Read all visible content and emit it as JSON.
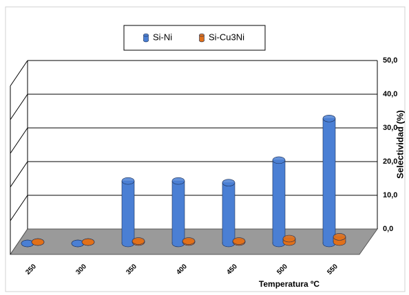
{
  "chart_data": {
    "type": "bar3d",
    "categories": [
      "250",
      "300",
      "350",
      "400",
      "450",
      "500",
      "550"
    ],
    "series": [
      {
        "name": "Si-Ni",
        "color": "#4a7fd4",
        "values": [
          0,
          0,
          18,
          18,
          17.5,
          24,
          36
        ]
      },
      {
        "name": "Si-Cu3Ni",
        "color": "#e0701a",
        "values": [
          0,
          0,
          0.3,
          0.3,
          0.3,
          1,
          1.5
        ]
      }
    ],
    "ylim": [
      0,
      50
    ],
    "yticks": [
      {
        "value": 0,
        "label": "0,0"
      },
      {
        "value": 10,
        "label": "10,0"
      },
      {
        "value": 20,
        "label": "20,0"
      },
      {
        "value": 30,
        "label": "30,0"
      },
      {
        "value": 40,
        "label": "40,0"
      },
      {
        "value": 50,
        "label": "50,0"
      }
    ],
    "y_label": "Selectividad (%)",
    "x_label": "Temperatura ºC",
    "grid": true,
    "legend": "top"
  }
}
